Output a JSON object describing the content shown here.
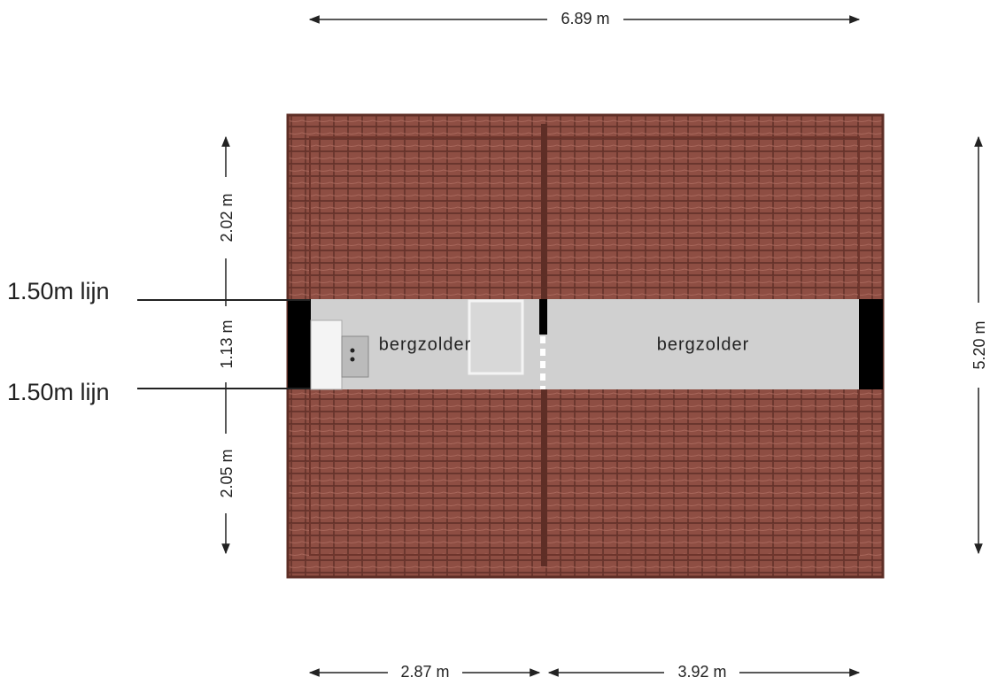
{
  "dimensions": {
    "top": "6.89 m",
    "bottom": [
      "2.87 m",
      "3.92 m"
    ],
    "left": [
      "2.02 m",
      "1.13 m",
      "2.05 m"
    ],
    "right": "5.20 m"
  },
  "lines": [
    "1.50m lijn",
    "1.50m lijn"
  ],
  "rooms": [
    "bergzolder",
    "bergzolder"
  ]
}
